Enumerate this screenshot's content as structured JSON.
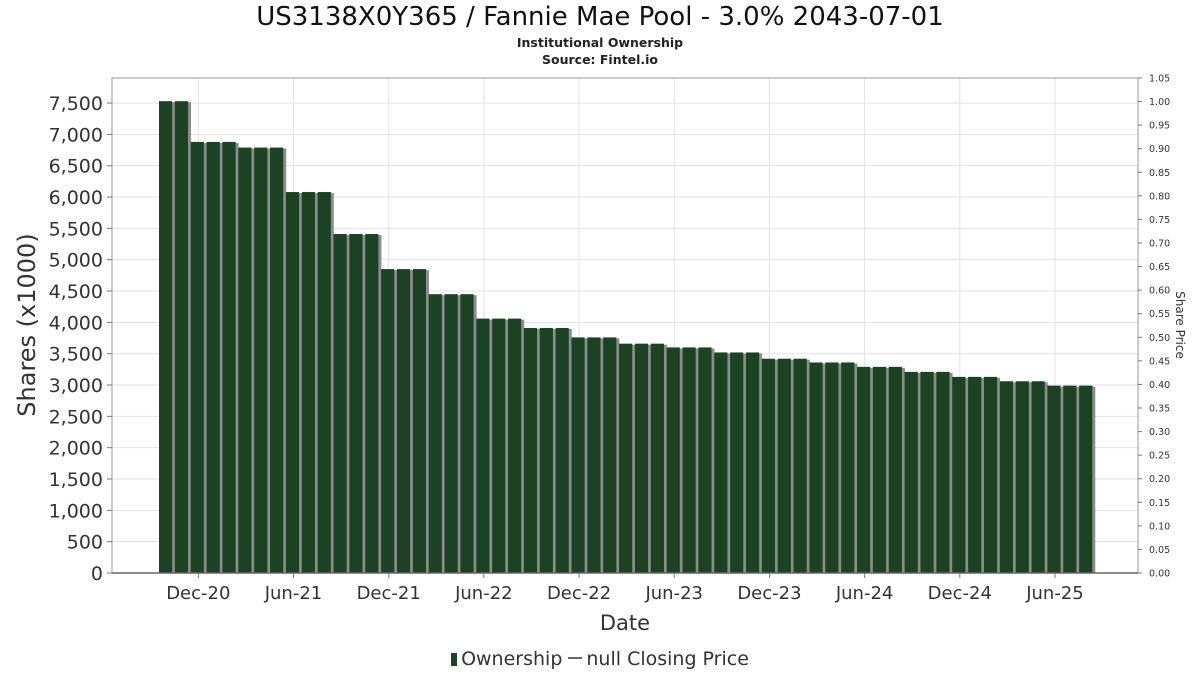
{
  "chart_data": {
    "type": "bar",
    "title": "US3138X0Y365 / Fannie Mae Pool - 3.0% 2043-07-01",
    "subtitles": [
      "Institutional Ownership",
      "Source: Fintel.io"
    ],
    "xlabel": "Date",
    "ylabel": "Shares (x1000)",
    "y2label": "Share Price",
    "ylim": [
      0,
      7900
    ],
    "y2lim": [
      0,
      1.05
    ],
    "yticks": [
      0,
      500,
      1000,
      1500,
      2000,
      2500,
      3000,
      3500,
      4000,
      4500,
      5000,
      5500,
      6000,
      6500,
      7000,
      7500
    ],
    "ytick_labels": [
      "0",
      "500",
      "1,000",
      "1,500",
      "2,000",
      "2,500",
      "3,000",
      "3,500",
      "4,000",
      "4,500",
      "5,000",
      "5,500",
      "6,000",
      "6,500",
      "7,000",
      "7,500"
    ],
    "y2ticks": [
      "0.00",
      "0.05",
      "0.10",
      "0.15",
      "0.20",
      "0.25",
      "0.30",
      "0.35",
      "0.40",
      "0.45",
      "0.50",
      "0.55",
      "0.60",
      "0.65",
      "0.70",
      "0.75",
      "0.80",
      "0.85",
      "0.90",
      "0.95",
      "1.00",
      "1.05"
    ],
    "xtick_labels": [
      "Dec-20",
      "Jun-21",
      "Dec-21",
      "Jun-22",
      "Dec-22",
      "Jun-23",
      "Dec-23",
      "Jun-24",
      "Dec-24",
      "Jun-25"
    ],
    "grid": true,
    "legend_position": "bottom",
    "colors": {
      "bar": "#1b4323",
      "bar_shadow": "#8c8c8c",
      "grid": "#e2e2e2"
    },
    "series": [
      {
        "name": "Ownership",
        "values": [
          7530,
          7530,
          6880,
          6880,
          6880,
          6790,
          6790,
          6790,
          6080,
          6080,
          6080,
          5410,
          5410,
          5410,
          4850,
          4850,
          4850,
          4450,
          4450,
          4450,
          4060,
          4060,
          4060,
          3910,
          3910,
          3910,
          3760,
          3760,
          3760,
          3660,
          3660,
          3660,
          3600,
          3600,
          3600,
          3520,
          3520,
          3520,
          3420,
          3420,
          3420,
          3360,
          3360,
          3360,
          3290,
          3290,
          3290,
          3210,
          3210,
          3210,
          3130,
          3130,
          3130,
          3060,
          3060,
          3060,
          2990,
          2990,
          2990
        ]
      },
      {
        "name": "null Closing Price",
        "values": []
      }
    ]
  },
  "legend": {
    "ownership_label": "Ownership",
    "price_label": "null Closing Price"
  }
}
